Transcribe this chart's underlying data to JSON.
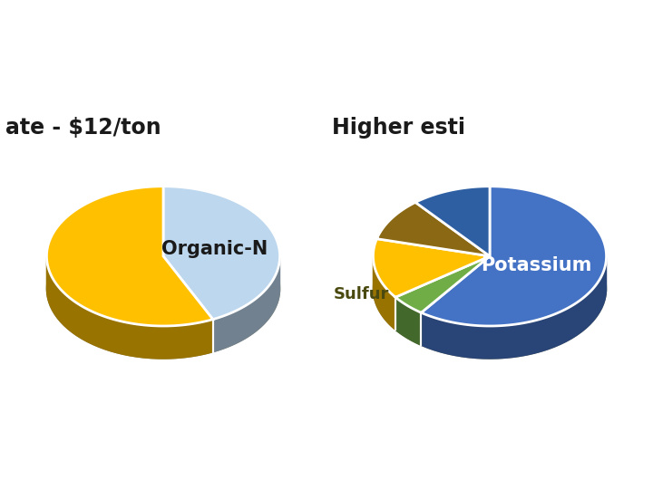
{
  "left_title": "ate - $12/ton",
  "right_title": "Higher esti",
  "left_segments": [
    {
      "label": "Organic-N",
      "value": 43,
      "color": "#BDD7EE",
      "text_color": "#1a1a1a",
      "start_angle": 180
    },
    {
      "label": "",
      "value": 57,
      "color": "#FFC000",
      "text_color": "#1a1a1a"
    }
  ],
  "right_segments": [
    {
      "label": "Potassium",
      "value": 60,
      "color": "#4472C4",
      "text_color": "#ffffff"
    },
    {
      "label": "Sulfur",
      "value": 5,
      "color": "#70AD47",
      "text_color": "#5a5a00"
    },
    {
      "label": "",
      "value": 14,
      "color": "#FFC000",
      "text_color": "#1a1a1a"
    },
    {
      "label": "",
      "value": 10,
      "color": "#8B6914",
      "text_color": "#1a1a1a"
    },
    {
      "label": "",
      "value": 11,
      "color": "#2E5FA3",
      "text_color": "#1a1a1a"
    }
  ],
  "bg_color": "#ffffff",
  "label_fontsize": 15,
  "title_fontsize": 17,
  "depth": 0.28,
  "yscale": 0.6
}
